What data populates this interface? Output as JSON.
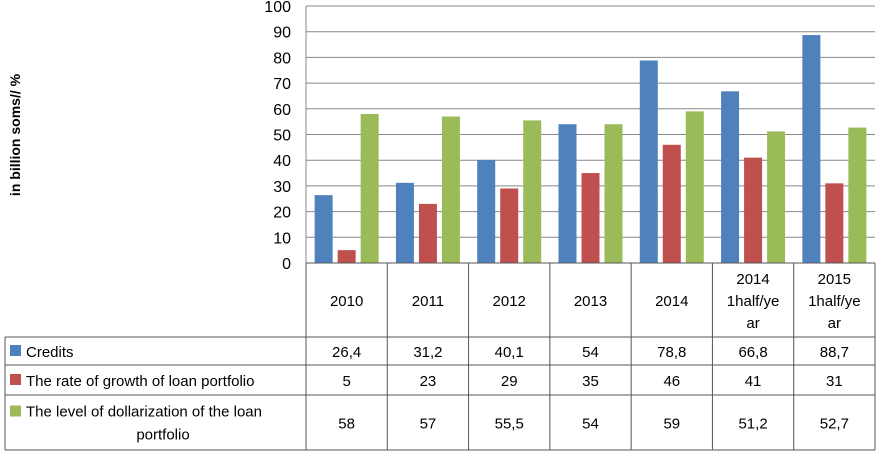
{
  "chart_data": {
    "type": "bar",
    "title": "",
    "ylabel": "in billion soms// %",
    "xlabel": "",
    "ylim": [
      0,
      100
    ],
    "yticks": [
      0,
      10,
      20,
      30,
      40,
      50,
      60,
      70,
      80,
      90,
      100
    ],
    "grid": true,
    "legend": "data-table",
    "categories": [
      [
        "2010"
      ],
      [
        "2011"
      ],
      [
        "2012"
      ],
      [
        "2013"
      ],
      [
        "2014"
      ],
      [
        "2014",
        "1half/ye",
        "ar"
      ],
      [
        "2015",
        "1half/ye",
        "ar"
      ]
    ],
    "series": [
      {
        "name": "Credits",
        "color": "#4f81bd",
        "values": [
          26.4,
          31.2,
          40.1,
          54,
          78.8,
          66.8,
          88.7
        ],
        "labels": [
          "26,4",
          "31,2",
          "40,1",
          "54",
          "78,8",
          "66,8",
          "88,7"
        ]
      },
      {
        "name": "The rate of growth of loan portfolio",
        "color": "#c0504d",
        "values": [
          5,
          23,
          29,
          35,
          46,
          41,
          31
        ],
        "labels": [
          "5",
          "23",
          "29",
          "35",
          "46",
          "41",
          "31"
        ]
      },
      {
        "name": [
          "The level of dollarization of the loan",
          "portfolio"
        ],
        "color": "#9bbb59",
        "values": [
          58,
          57,
          55.5,
          54,
          59,
          51.2,
          52.7
        ],
        "labels": [
          "58",
          "57",
          "55,5",
          "54",
          "59",
          "51,2",
          "52,7"
        ]
      }
    ]
  }
}
